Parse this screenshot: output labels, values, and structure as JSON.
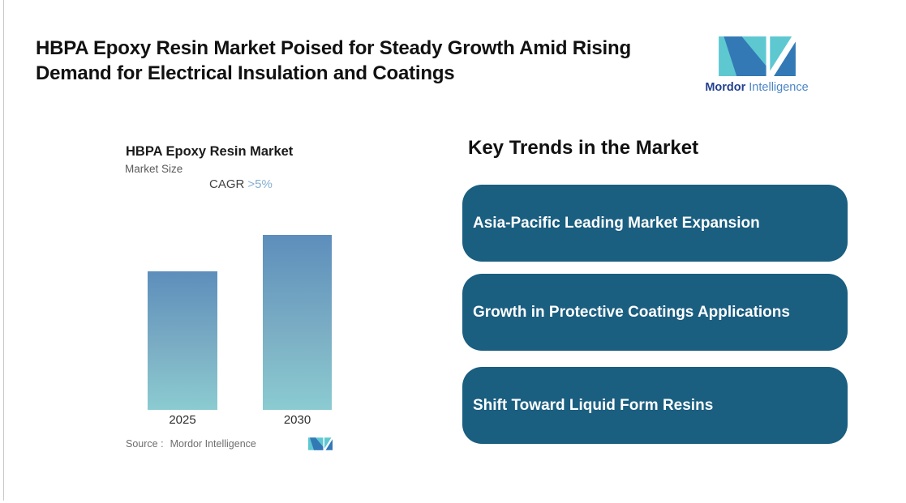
{
  "page": {
    "background": "#ffffff",
    "edge_line_color": "#c9c9c9",
    "title_line1": "HBPA Epoxy Resin Market Poised for Steady Growth Amid Rising",
    "title_line2": "Demand for Electrical Insulation and Coatings",
    "title_color": "#111111"
  },
  "brand": {
    "name_bold": "Mordor",
    "name_light": "Intelligence",
    "logo_teal": "#5EC8D1",
    "logo_blue": "#3379B6",
    "name_bold_color": "#24418F",
    "name_light_color": "#4C86C6"
  },
  "chart": {
    "title": "HBPA Epoxy Resin Market",
    "subtitle": "Market Size",
    "cagr_label": "CAGR",
    "cagr_value": ">5%",
    "cagr_value_color": "#85AFD2",
    "source_label": "Source :",
    "source_value": "Mordor Intelligence",
    "bar_top_color": "#5D8EBC",
    "bar_bottom_color": "#8BCBD1"
  },
  "chart_data": {
    "type": "bar",
    "title": "HBPA Epoxy Resin Market",
    "subtitle": "Market Size",
    "annotation": "CAGR >5%",
    "categories": [
      "2025",
      "2030"
    ],
    "values": [
      0.79,
      1.0
    ],
    "value_note": "no numeric axis shown; heights relative, 2030 = 1.0 (consistent with CAGR >5% over 2025-2030)",
    "ylim": [
      0,
      1
    ],
    "grid": false,
    "legend": false,
    "source": "Source : Mordor Intelligence"
  },
  "key_trends": {
    "heading": "Key Trends in the Market",
    "box_color": "#1A5E80",
    "text_color": "#ffffff",
    "items": [
      {
        "label": "Asia-Pacific Leading Market Expansion"
      },
      {
        "label": "Growth in Protective Coatings Applications"
      },
      {
        "label": "Shift Toward Liquid Form Resins"
      }
    ]
  }
}
